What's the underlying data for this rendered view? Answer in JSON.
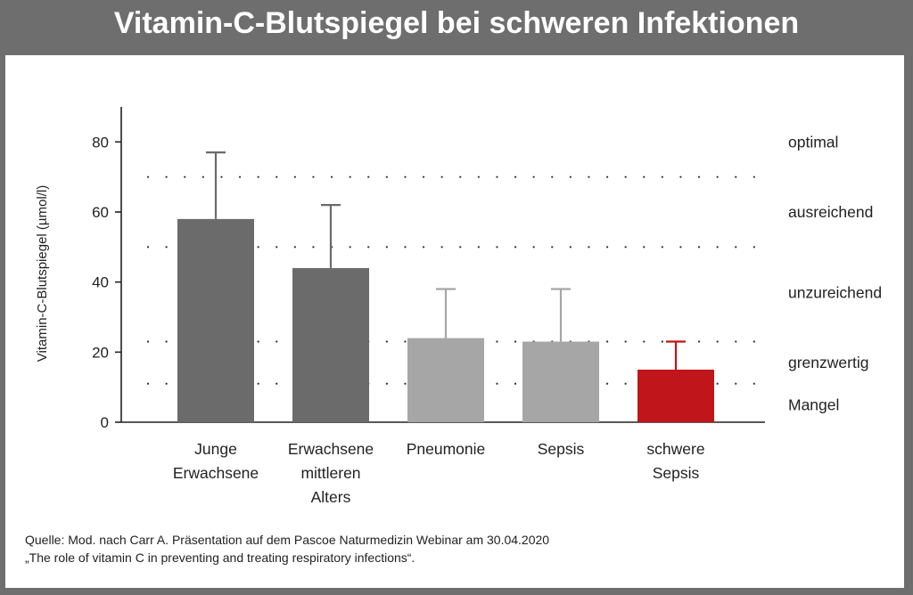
{
  "title": "Vitamin-C-Blutspiegel bei schweren Infektionen",
  "chart_data": {
    "type": "bar",
    "ylabel": "Vitamin-C-Blutspiegel (µmol/l)",
    "ylim": [
      0,
      90
    ],
    "yticks": [
      0,
      20,
      40,
      60,
      80
    ],
    "categories": [
      [
        "Junge",
        "Erwachsene"
      ],
      [
        "Erwachsene",
        "mittleren",
        "Alters"
      ],
      [
        "Pneumonie"
      ],
      [
        "Sepsis"
      ],
      [
        "schwere",
        "Sepsis"
      ]
    ],
    "values": [
      58,
      44,
      24,
      23,
      15
    ],
    "error_upper": [
      77,
      62,
      38,
      38,
      23
    ],
    "bar_colors": [
      "#6b6b6b",
      "#6b6b6b",
      "#a6a6a6",
      "#a6a6a6",
      "#c0151b"
    ],
    "reference_lines": [
      70,
      50,
      23,
      11
    ],
    "zones": [
      {
        "label": "optimal",
        "y": 80
      },
      {
        "label": "ausreichend",
        "y": 60
      },
      {
        "label": "unzureichend",
        "y": 37
      },
      {
        "label": "grenzwertig",
        "y": 17
      },
      {
        "label": "Mangel",
        "y": 5
      }
    ]
  },
  "source": {
    "line1": "Quelle: Mod. nach Carr A. Präsentation auf dem Pascoe Naturmedizin Webinar am 30.04.2020",
    "line2": "„The role of vitamin C in preventing and treating respiratory infections“."
  }
}
